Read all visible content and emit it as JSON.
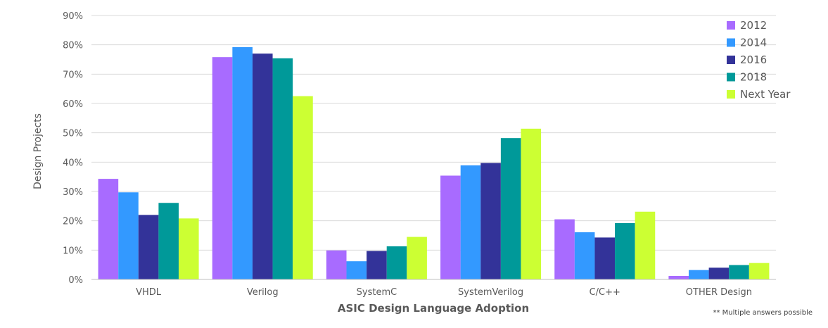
{
  "chart_data": {
    "type": "bar",
    "title": "",
    "xlabel": "ASIC Design Language Adoption",
    "ylabel": "Design Projects",
    "ylim": [
      0,
      90
    ],
    "y_ticks": [
      "0%",
      "10%",
      "20%",
      "30%",
      "40%",
      "50%",
      "60%",
      "70%",
      "80%",
      "90%"
    ],
    "y_tick_values": [
      0,
      10,
      20,
      30,
      40,
      50,
      60,
      70,
      80,
      90
    ],
    "grid": true,
    "legend_position": "top-right",
    "categories": [
      "VHDL",
      "Verilog",
      "SystemC",
      "SystemVerilog",
      "C/C++",
      "OTHER Design"
    ],
    "series": [
      {
        "name": "2012",
        "color": "#a86bff",
        "values": [
          34.3,
          75.8,
          9.9,
          35.4,
          20.5,
          1.2
        ]
      },
      {
        "name": "2014",
        "color": "#3399ff",
        "values": [
          29.7,
          79.2,
          6.2,
          38.9,
          16.1,
          3.2
        ]
      },
      {
        "name": "2016",
        "color": "#333399",
        "values": [
          22.0,
          77.0,
          9.7,
          39.7,
          14.3,
          4.0
        ]
      },
      {
        "name": "2018",
        "color": "#009999",
        "values": [
          26.1,
          75.4,
          11.3,
          48.2,
          19.2,
          4.9
        ]
      },
      {
        "name": "Next Year",
        "color": "#ccff33",
        "values": [
          20.8,
          62.5,
          14.5,
          51.4,
          23.1,
          5.6
        ]
      }
    ],
    "footnote": "** Multiple answers possible"
  }
}
